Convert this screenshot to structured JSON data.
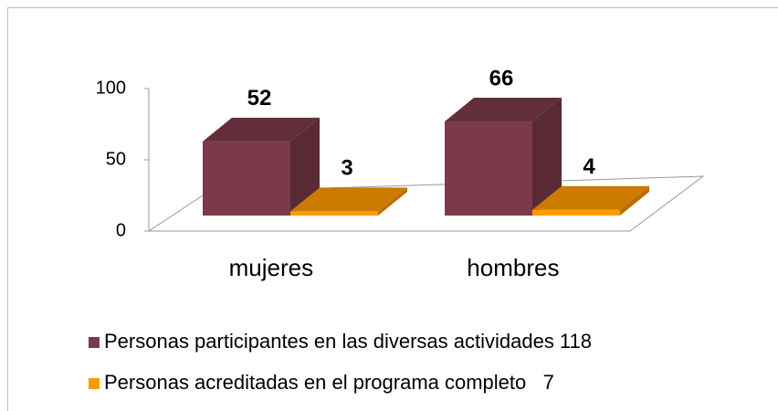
{
  "chart_data": {
    "type": "bar3d",
    "categories": [
      "mujeres",
      "hombres"
    ],
    "series": [
      {
        "name": "Personas participantes en las diversas actividades 118",
        "color": "#7b3a4a",
        "values": [
          52,
          66
        ]
      },
      {
        "name": "Personas acreditadas en el programa completo   7",
        "color": "#ff9900",
        "values": [
          3,
          4
        ]
      }
    ],
    "ylim": [
      0,
      100
    ],
    "yticks": [
      0,
      50,
      100
    ],
    "grid": false,
    "legend": "bottom"
  }
}
